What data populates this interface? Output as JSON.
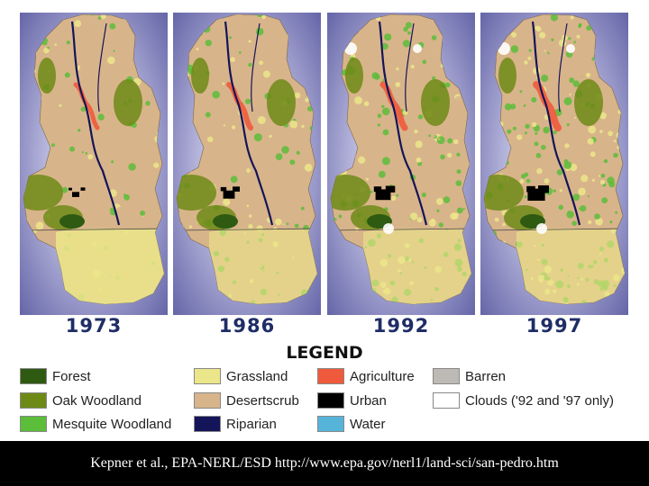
{
  "maps": [
    {
      "year": "1973"
    },
    {
      "year": "1986"
    },
    {
      "year": "1992"
    },
    {
      "year": "1997"
    }
  ],
  "legend": {
    "title": "LEGEND",
    "items": [
      {
        "label": "Forest",
        "color": "#2e5a12"
      },
      {
        "label": "Grassland",
        "color": "#ece68a"
      },
      {
        "label": "Agriculture",
        "color": "#f05a3c"
      },
      {
        "label": "Barren",
        "color": "#bdbab5"
      },
      {
        "label": "Oak Woodland",
        "color": "#6e8a16"
      },
      {
        "label": "Desertscrub",
        "color": "#d8b48a"
      },
      {
        "label": "Urban",
        "color": "#000000"
      },
      {
        "label": "Clouds ('92 and '97 only)",
        "color": "#ffffff"
      },
      {
        "label": "Mesquite Woodland",
        "color": "#5cbd3a"
      },
      {
        "label": "Riparian",
        "color": "#141459"
      },
      {
        "label": "Water",
        "color": "#56b4d8"
      }
    ]
  },
  "footer": {
    "citation": "Kepner et al., EPA-NERL/ESD http://www.epa.gov/nerl1/land-sci/san-pedro.htm"
  }
}
